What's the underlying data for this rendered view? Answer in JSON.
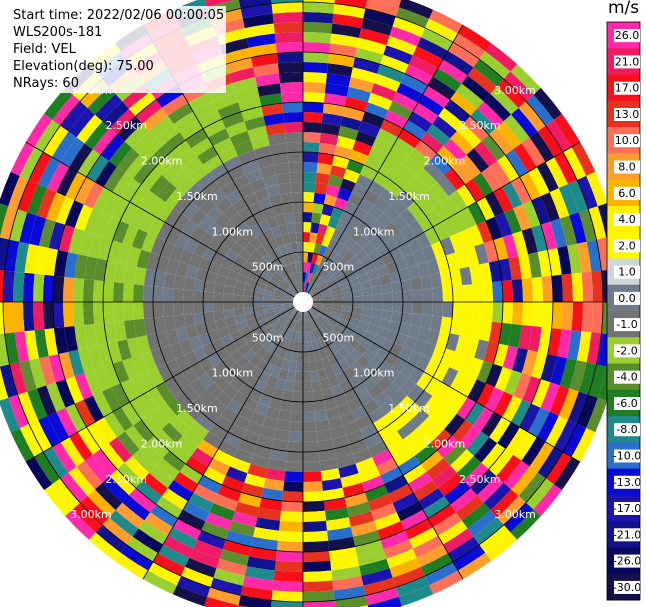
{
  "info": {
    "start_time": "Start time: 2022/02/06 00:00:05",
    "site": "WLS200s-181",
    "field": "Field: VEL",
    "elevation": "Elevation(deg): 75.00",
    "nrays": "NRays: 60"
  },
  "colorbar": {
    "unit": "m/s",
    "labels": [
      "26.0",
      "21.0",
      "17.0",
      "13.0",
      "10.0",
      "8.0",
      "6.0",
      "4.0",
      "2.0",
      "1.0",
      "0.0",
      "-1.0",
      "-2.0",
      "-4.0",
      "-6.0",
      "-8.0",
      "-10.0",
      "-13.0",
      "-17.0",
      "-21.0",
      "-26.0",
      "-30.0"
    ],
    "colors": [
      "#ff2aa9",
      "#ef1b63",
      "#f70f1a",
      "#e6321f",
      "#fe6f58",
      "#ff9e2e",
      "#ffb301",
      "#fff200",
      "#fdf800",
      "#ced8da",
      "#6f7b88",
      "#737373",
      "#9bcf2f",
      "#5c8d2d",
      "#1f7d22",
      "#1f8a8c",
      "#2b6fcd",
      "#0a0ad6",
      "#1b14ad",
      "#11128e",
      "#08085b",
      "#14104c"
    ]
  },
  "range_rings": {
    "labels": [
      "500m",
      "1.00km",
      "1.50km",
      "2.00km",
      "2.50km",
      "3.00km"
    ],
    "values_km": [
      0.5,
      1.0,
      1.5,
      2.0,
      2.5,
      3.0
    ]
  },
  "chart_data": {
    "type": "heatmap",
    "projection": "polar-ppi",
    "field": "VEL",
    "units": "m/s",
    "elevation_deg": 75.0,
    "n_rays": 60,
    "azimuth_step_deg": 6,
    "range_gate_km": 0.1,
    "max_range_km": 3.2,
    "blank_radius_km": 0.1,
    "regions": [
      {
        "range_km": [
          0.1,
          1.9
        ],
        "az_deg": [
          0,
          20
        ],
        "value": "mixed"
      },
      {
        "range_km": [
          0.1,
          1.6
        ],
        "az_deg": [
          20,
          150
        ],
        "value": "mixed_low"
      },
      {
        "range_km": [
          0.1,
          1.7
        ],
        "az_deg": [
          150,
          360
        ],
        "value": -1.0
      },
      {
        "range_km": [
          0.5,
          1.3
        ],
        "az_deg": [
          60,
          150
        ],
        "value": 0.0
      },
      {
        "range_km": [
          1.4,
          1.9
        ],
        "az_deg": [
          50,
          150
        ],
        "value": 2.0
      },
      {
        "range_km": [
          1.6,
          2.3
        ],
        "az_deg": [
          210,
          345
        ],
        "value": -2.0
      },
      {
        "range_km": [
          1.9,
          3.2
        ],
        "az_deg": [
          0,
          360
        ],
        "value": "mixed"
      }
    ]
  }
}
